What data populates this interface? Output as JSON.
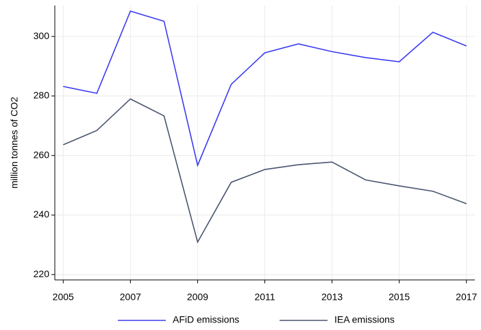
{
  "chart_data": {
    "type": "line",
    "y_label": "million tonnes of CO2",
    "x": [
      2005,
      2006,
      2007,
      2008,
      2009,
      2010,
      2011,
      2012,
      2013,
      2014,
      2015,
      2016,
      2017
    ],
    "series": [
      {
        "name": "AFiD emissions",
        "color": "#3b3bf2",
        "values": [
          283.2,
          280.9,
          308.5,
          305.1,
          256.7,
          283.9,
          294.5,
          297.5,
          294.9,
          292.9,
          291.5,
          301.4,
          296.8
        ]
      },
      {
        "name": "IEA emissions",
        "color": "#48546e",
        "values": [
          263.6,
          268.4,
          279,
          273.3,
          230.9,
          251,
          255.3,
          256.9,
          257.8,
          251.8,
          249.8,
          248,
          243.8
        ]
      }
    ],
    "xlim": [
      2004.75,
      2017.25
    ],
    "ylim": [
      218.2,
      310.4
    ],
    "xticks": [
      2005,
      2007,
      2009,
      2011,
      2013,
      2015,
      2017
    ],
    "yticks": [
      220,
      240,
      260,
      280,
      300
    ],
    "grid": true,
    "legend": "bottom"
  }
}
